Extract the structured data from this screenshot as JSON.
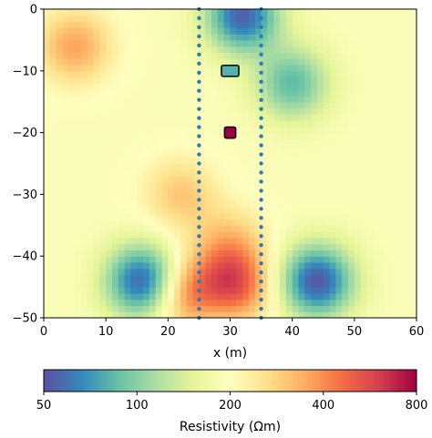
{
  "chart_data": {
    "type": "heatmap",
    "title": "",
    "xlabel": "x (m)",
    "ylabel": "",
    "xlim": [
      0,
      60
    ],
    "ylim": [
      -50,
      0
    ],
    "xticks": [
      "0",
      "10",
      "20",
      "30",
      "40",
      "50",
      "60"
    ],
    "yticks": [
      "0",
      "−10",
      "−20",
      "−30",
      "−40",
      "−50"
    ],
    "colorbar": {
      "label": "Resistivity (Ωm)",
      "scale": "log",
      "range": [
        50,
        800
      ],
      "ticks": [
        "50",
        "100",
        "200",
        "400",
        "800"
      ],
      "colormap": "Spectral_r",
      "stops": [
        "#5e4fa2",
        "#3288bd",
        "#66c2a5",
        "#abdda4",
        "#e6f598",
        "#ffffbf",
        "#fee08b",
        "#fdae61",
        "#f46d43",
        "#d53e4f",
        "#9e0142"
      ]
    },
    "electrode_lines": [
      {
        "x": 25,
        "z_from": 0,
        "z_to": -50,
        "marker": "dots",
        "color": "#2c7bb6"
      },
      {
        "x": 35,
        "z_from": 0,
        "z_to": -50,
        "marker": "dots",
        "color": "#2c7bb6"
      }
    ],
    "targets": [
      {
        "shape": "rectangle",
        "x_center": 30,
        "z_center": -10,
        "width": 2.8,
        "height": 1.8,
        "fill_resistivity": 80
      },
      {
        "shape": "rectangle",
        "x_center": 30,
        "z_center": -20,
        "width": 1.8,
        "height": 1.8,
        "fill_resistivity": 800
      }
    ],
    "field_features": [
      {
        "kind": "high",
        "x": 5,
        "z": -6,
        "resistivity": 360
      },
      {
        "kind": "high",
        "x": 22,
        "z": -30,
        "resistivity": 300
      },
      {
        "kind": "high",
        "x": 30,
        "z": -38,
        "resistivity": 300
      },
      {
        "kind": "low",
        "x": 16,
        "z": -44,
        "resistivity": 52
      },
      {
        "kind": "low",
        "x": 44,
        "z": -44,
        "resistivity": 52
      },
      {
        "kind": "high",
        "x": 30,
        "z": -45,
        "resistivity": 780
      },
      {
        "kind": "high",
        "x": 24,
        "z": -46,
        "resistivity": 700
      },
      {
        "kind": "low",
        "x": 27,
        "z": -46,
        "resistivity": 65
      },
      {
        "kind": "low",
        "x": 32,
        "z": -1,
        "resistivity": 55
      },
      {
        "kind": "low",
        "x": 40,
        "z": -12,
        "resistivity": 85
      }
    ]
  }
}
